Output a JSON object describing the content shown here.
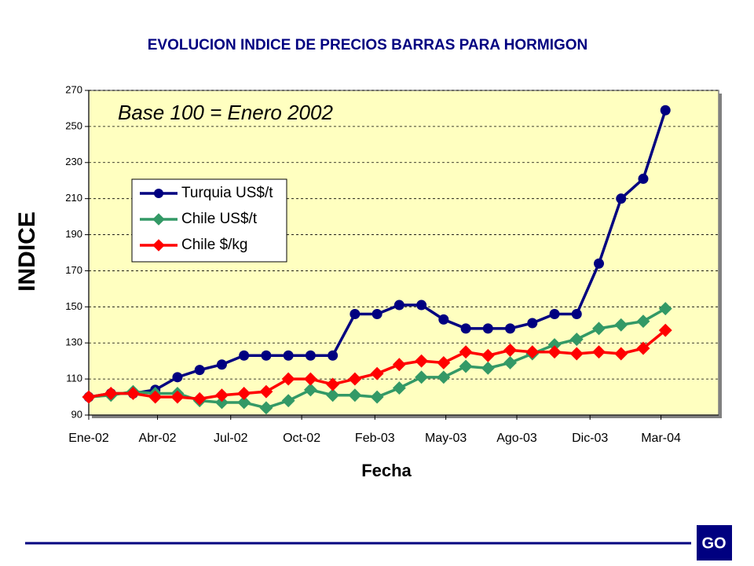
{
  "chart_data": {
    "type": "line",
    "title": "EVOLUCION  INDICE  DE PRECIOS  BARRAS PARA HORMIGON",
    "annotation": "Base 100 = Enero 2002",
    "xlabel": "Fecha",
    "ylabel": "INDICE",
    "x": [
      0,
      1,
      2,
      3,
      4,
      5,
      6,
      7,
      8,
      9,
      10,
      11,
      12,
      13,
      14,
      15,
      16,
      17,
      18,
      19,
      20,
      21,
      22,
      23,
      24,
      25,
      26
    ],
    "xlim": [
      0,
      28.4
    ],
    "xticks": [
      {
        "value": 0,
        "label": "Ene-02"
      },
      {
        "value": 3.1,
        "label": "Abr-02"
      },
      {
        "value": 6.4,
        "label": "Jul-02"
      },
      {
        "value": 9.6,
        "label": "Oct-02"
      },
      {
        "value": 12.9,
        "label": "Feb-03"
      },
      {
        "value": 16.1,
        "label": "May-03"
      },
      {
        "value": 19.3,
        "label": "Ago-03"
      },
      {
        "value": 22.6,
        "label": "Dic-03"
      },
      {
        "value": 25.8,
        "label": "Mar-04"
      }
    ],
    "ylim": [
      90,
      270
    ],
    "yticks": [
      90,
      110,
      130,
      150,
      170,
      190,
      210,
      230,
      250,
      270
    ],
    "grid": true,
    "series": [
      {
        "name": "Turquia US$/t",
        "color": "#000080",
        "marker": "circle",
        "values": [
          100,
          102,
          102,
          104,
          111,
          115,
          118,
          123,
          123,
          123,
          123,
          123,
          146,
          146,
          151,
          151,
          143,
          138,
          138,
          138,
          141,
          146,
          146,
          174,
          210,
          221,
          259
        ]
      },
      {
        "name": "Chile US$/t",
        "color": "#339966",
        "marker": "diamond",
        "values": [
          100,
          101,
          103,
          102,
          102,
          98,
          97,
          97,
          94,
          98,
          104,
          101,
          101,
          100,
          105,
          111,
          111,
          117,
          116,
          119,
          124,
          129,
          132,
          138,
          140,
          142,
          149
        ]
      },
      {
        "name": "Chile $/kg",
        "color": "#ff0000",
        "marker": "diamond",
        "values": [
          100,
          102,
          102,
          100,
          100,
          99,
          101,
          102,
          103,
          110,
          110,
          107,
          110,
          113,
          118,
          120,
          119,
          125,
          123,
          126,
          125,
          125,
          124,
          125,
          124,
          127,
          137
        ]
      }
    ],
    "legend": "upper left",
    "logo": "GO"
  }
}
